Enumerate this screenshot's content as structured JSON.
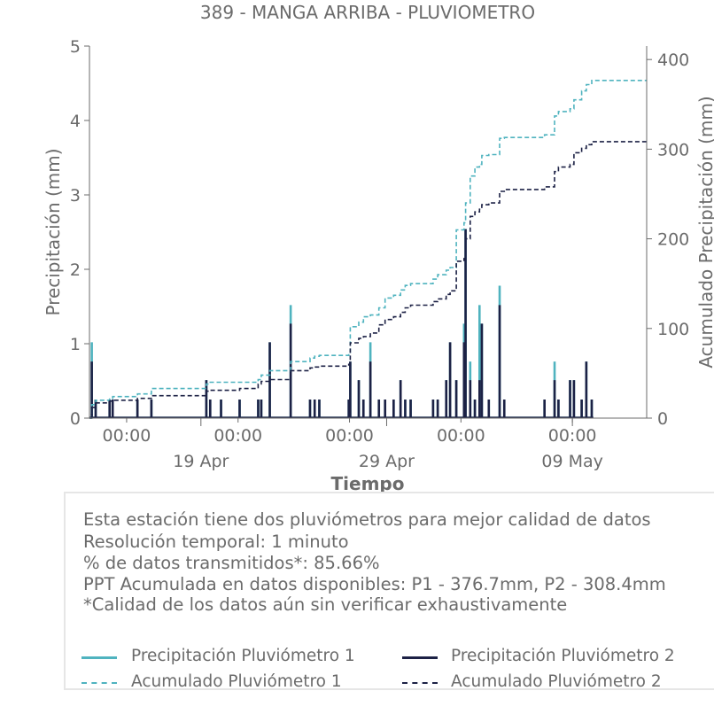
{
  "chart_data": {
    "type": "line",
    "title": "389 - MANGA ARRIBA - PLUVIOMETRO",
    "xlabel": "Tiempo",
    "ylabel": "Precipitación (mm)",
    "ylabel_right": "Acumulado Precipitación (mm)",
    "ylim": [
      0,
      5
    ],
    "ylim_right": [
      0,
      415
    ],
    "yticks": [
      0,
      1,
      2,
      3,
      4,
      5
    ],
    "yticks_right": [
      0,
      100,
      200,
      300,
      400
    ],
    "x_range": [
      "2024-04-13",
      "2024-05-13"
    ],
    "x_major_ticks": [
      {
        "x": "2024-04-19",
        "label": "19 Apr"
      },
      {
        "x": "2024-04-29",
        "label": "29 Apr"
      },
      {
        "x": "2024-05-09",
        "label": "09 May"
      }
    ],
    "x_minor_ticks": [
      {
        "x": "2024-04-15",
        "label": "00:00"
      },
      {
        "x": "2024-04-21",
        "label": "00:00"
      },
      {
        "x": "2024-04-27",
        "label": "00:00"
      },
      {
        "x": "2024-05-03",
        "label": "00:00"
      },
      {
        "x": "2024-05-09",
        "label": "00:00"
      }
    ],
    "grid": false,
    "series": [
      {
        "name": "Precipitación Pluviómetro 1",
        "kind": "spikes",
        "axis": "left",
        "color": "#4fb3bf",
        "points": [
          [
            "2024-04-13 03:00",
            1.02
          ],
          [
            "2024-04-13 08:00",
            0.25
          ],
          [
            "2024-04-14 02:00",
            0.25
          ],
          [
            "2024-04-14 06:00",
            0.25
          ],
          [
            "2024-04-15 14:00",
            0.25
          ],
          [
            "2024-04-16 08:00",
            0.25
          ],
          [
            "2024-04-19 07:00",
            0.51
          ],
          [
            "2024-04-19 12:00",
            0.25
          ],
          [
            "2024-04-20 02:00",
            0.25
          ],
          [
            "2024-04-21 02:00",
            0.25
          ],
          [
            "2024-04-22 02:00",
            0.25
          ],
          [
            "2024-04-22 06:00",
            0.25
          ],
          [
            "2024-04-22 17:00",
            1.02
          ],
          [
            "2024-04-23 20:00",
            1.52
          ],
          [
            "2024-04-24 21:00",
            0.25
          ],
          [
            "2024-04-25 03:00",
            0.25
          ],
          [
            "2024-04-25 09:00",
            0.25
          ],
          [
            "2024-04-26 23:00",
            0.25
          ],
          [
            "2024-04-27 01:00",
            0.76
          ],
          [
            "2024-04-27 12:00",
            0.51
          ],
          [
            "2024-04-27 18:00",
            0.25
          ],
          [
            "2024-04-28 03:00",
            1.02
          ],
          [
            "2024-04-28 14:00",
            0.25
          ],
          [
            "2024-04-28 22:00",
            0.25
          ],
          [
            "2024-04-29 09:00",
            0.25
          ],
          [
            "2024-04-29 18:00",
            0.51
          ],
          [
            "2024-04-30 00:00",
            0.25
          ],
          [
            "2024-04-30 07:00",
            0.25
          ],
          [
            "2024-05-01 12:00",
            0.25
          ],
          [
            "2024-05-01 18:00",
            0.25
          ],
          [
            "2024-05-02 05:00",
            0.51
          ],
          [
            "2024-05-02 10:00",
            1.02
          ],
          [
            "2024-05-02 18:00",
            0.51
          ],
          [
            "2024-05-03 04:00",
            1.27
          ],
          [
            "2024-05-03 06:00",
            2.54
          ],
          [
            "2024-05-03 12:00",
            0.76
          ],
          [
            "2024-05-03 18:00",
            0.25
          ],
          [
            "2024-05-04 00:00",
            1.52
          ],
          [
            "2024-05-04 03:00",
            1.27
          ],
          [
            "2024-05-04 12:00",
            0.25
          ],
          [
            "2024-05-05 02:00",
            1.78
          ],
          [
            "2024-05-05 08:00",
            0.25
          ],
          [
            "2024-05-07 12:00",
            0.25
          ],
          [
            "2024-05-08 01:00",
            0.76
          ],
          [
            "2024-05-08 06:00",
            0.25
          ],
          [
            "2024-05-08 21:00",
            0.51
          ],
          [
            "2024-05-09 02:00",
            0.51
          ],
          [
            "2024-05-09 12:00",
            0.25
          ],
          [
            "2024-05-09 18:00",
            0.76
          ],
          [
            "2024-05-10 01:00",
            0.25
          ]
        ]
      },
      {
        "name": "Precipitación Pluviómetro 2",
        "kind": "spikes",
        "axis": "left",
        "color": "#1c2145",
        "points": [
          [
            "2024-04-13 03:00",
            0.76
          ],
          [
            "2024-04-13 08:00",
            0.25
          ],
          [
            "2024-04-14 02:00",
            0.25
          ],
          [
            "2024-04-14 06:00",
            0.25
          ],
          [
            "2024-04-15 14:00",
            0.25
          ],
          [
            "2024-04-16 08:00",
            0.25
          ],
          [
            "2024-04-19 07:00",
            0.51
          ],
          [
            "2024-04-19 12:00",
            0.25
          ],
          [
            "2024-04-20 02:00",
            0.25
          ],
          [
            "2024-04-21 02:00",
            0.25
          ],
          [
            "2024-04-22 02:00",
            0.25
          ],
          [
            "2024-04-22 06:00",
            0.25
          ],
          [
            "2024-04-22 17:00",
            1.02
          ],
          [
            "2024-04-23 20:00",
            1.27
          ],
          [
            "2024-04-24 21:00",
            0.25
          ],
          [
            "2024-04-25 03:00",
            0.25
          ],
          [
            "2024-04-25 09:00",
            0.25
          ],
          [
            "2024-04-26 23:00",
            0.25
          ],
          [
            "2024-04-27 01:00",
            0.76
          ],
          [
            "2024-04-27 12:00",
            0.51
          ],
          [
            "2024-04-27 18:00",
            0.25
          ],
          [
            "2024-04-28 03:00",
            0.76
          ],
          [
            "2024-04-28 14:00",
            0.25
          ],
          [
            "2024-04-28 22:00",
            0.25
          ],
          [
            "2024-04-29 09:00",
            0.25
          ],
          [
            "2024-04-29 18:00",
            0.51
          ],
          [
            "2024-04-30 00:00",
            0.25
          ],
          [
            "2024-04-30 07:00",
            0.25
          ],
          [
            "2024-05-01 12:00",
            0.25
          ],
          [
            "2024-05-01 18:00",
            0.25
          ],
          [
            "2024-05-02 05:00",
            0.51
          ],
          [
            "2024-05-02 10:00",
            1.02
          ],
          [
            "2024-05-02 18:00",
            0.51
          ],
          [
            "2024-05-03 04:00",
            1.02
          ],
          [
            "2024-05-03 06:00",
            2.54
          ],
          [
            "2024-05-03 12:00",
            0.51
          ],
          [
            "2024-05-03 18:00",
            0.25
          ],
          [
            "2024-05-04 00:00",
            0.51
          ],
          [
            "2024-05-04 03:00",
            1.27
          ],
          [
            "2024-05-04 12:00",
            0.25
          ],
          [
            "2024-05-05 02:00",
            1.52
          ],
          [
            "2024-05-05 08:00",
            0.25
          ],
          [
            "2024-05-07 12:00",
            0.25
          ],
          [
            "2024-05-08 01:00",
            0.51
          ],
          [
            "2024-05-08 06:00",
            0.25
          ],
          [
            "2024-05-08 21:00",
            0.51
          ],
          [
            "2024-05-09 02:00",
            0.51
          ],
          [
            "2024-05-09 12:00",
            0.25
          ],
          [
            "2024-05-09 18:00",
            0.76
          ],
          [
            "2024-05-10 01:00",
            0.25
          ]
        ]
      },
      {
        "name": "Acumulado Pluviómetro 1",
        "kind": "step",
        "axis": "right",
        "color": "#4fb3bf",
        "points": [
          [
            "2024-04-13 00:00",
            0
          ],
          [
            "2024-04-13 03:00",
            15
          ],
          [
            "2024-04-13 08:00",
            20
          ],
          [
            "2024-04-14 02:00",
            22
          ],
          [
            "2024-04-14 06:00",
            24
          ],
          [
            "2024-04-15 14:00",
            27
          ],
          [
            "2024-04-16 08:00",
            33
          ],
          [
            "2024-04-19 07:00",
            38
          ],
          [
            "2024-04-19 12:00",
            40
          ],
          [
            "2024-04-20 02:00",
            40
          ],
          [
            "2024-04-21 02:00",
            40
          ],
          [
            "2024-04-22 02:00",
            43
          ],
          [
            "2024-04-22 06:00",
            48
          ],
          [
            "2024-04-22 17:00",
            53
          ],
          [
            "2024-04-23 20:00",
            63
          ],
          [
            "2024-04-24 21:00",
            67
          ],
          [
            "2024-04-25 03:00",
            69
          ],
          [
            "2024-04-25 09:00",
            70
          ],
          [
            "2024-04-26 23:00",
            72
          ],
          [
            "2024-04-27 01:00",
            102
          ],
          [
            "2024-04-27 12:00",
            107
          ],
          [
            "2024-04-27 18:00",
            113
          ],
          [
            "2024-04-28 03:00",
            115
          ],
          [
            "2024-04-28 14:00",
            123
          ],
          [
            "2024-04-28 22:00",
            134
          ],
          [
            "2024-04-29 09:00",
            137
          ],
          [
            "2024-04-29 18:00",
            143
          ],
          [
            "2024-04-30 00:00",
            148
          ],
          [
            "2024-04-30 07:00",
            150
          ],
          [
            "2024-05-01 12:00",
            155
          ],
          [
            "2024-05-01 18:00",
            160
          ],
          [
            "2024-05-02 05:00",
            165
          ],
          [
            "2024-05-02 10:00",
            168
          ],
          [
            "2024-05-02 18:00",
            210
          ],
          [
            "2024-05-03 04:00",
            218
          ],
          [
            "2024-05-03 06:00",
            240
          ],
          [
            "2024-05-03 12:00",
            270
          ],
          [
            "2024-05-03 18:00",
            280
          ],
          [
            "2024-05-04 00:00",
            283
          ],
          [
            "2024-05-04 03:00",
            293
          ],
          [
            "2024-05-04 12:00",
            294
          ],
          [
            "2024-05-05 02:00",
            312
          ],
          [
            "2024-05-05 08:00",
            313
          ],
          [
            "2024-05-07 12:00",
            316
          ],
          [
            "2024-05-08 01:00",
            337
          ],
          [
            "2024-05-08 06:00",
            342
          ],
          [
            "2024-05-08 21:00",
            345
          ],
          [
            "2024-05-09 02:00",
            355
          ],
          [
            "2024-05-09 12:00",
            365
          ],
          [
            "2024-05-09 18:00",
            372
          ],
          [
            "2024-05-10 01:00",
            376.7
          ],
          [
            "2024-05-13 00:00",
            376.7
          ]
        ]
      },
      {
        "name": "Acumulado Pluviómetro 2",
        "kind": "step",
        "axis": "right",
        "color": "#1c2145",
        "points": [
          [
            "2024-04-13 00:00",
            0
          ],
          [
            "2024-04-13 03:00",
            12
          ],
          [
            "2024-04-13 08:00",
            17
          ],
          [
            "2024-04-14 02:00",
            19
          ],
          [
            "2024-04-14 06:00",
            20
          ],
          [
            "2024-04-15 14:00",
            22
          ],
          [
            "2024-04-16 08:00",
            25
          ],
          [
            "2024-04-19 07:00",
            30
          ],
          [
            "2024-04-19 12:00",
            31
          ],
          [
            "2024-04-20 02:00",
            31
          ],
          [
            "2024-04-21 02:00",
            33
          ],
          [
            "2024-04-22 02:00",
            38
          ],
          [
            "2024-04-22 06:00",
            41
          ],
          [
            "2024-04-22 17:00",
            43
          ],
          [
            "2024-04-23 20:00",
            53
          ],
          [
            "2024-04-24 21:00",
            56
          ],
          [
            "2024-04-25 03:00",
            57
          ],
          [
            "2024-04-25 09:00",
            58
          ],
          [
            "2024-04-26 23:00",
            60
          ],
          [
            "2024-04-27 01:00",
            84
          ],
          [
            "2024-04-27 12:00",
            89
          ],
          [
            "2024-04-27 18:00",
            91
          ],
          [
            "2024-04-28 03:00",
            95
          ],
          [
            "2024-04-28 14:00",
            104
          ],
          [
            "2024-04-28 22:00",
            110
          ],
          [
            "2024-04-29 09:00",
            113
          ],
          [
            "2024-04-29 18:00",
            118
          ],
          [
            "2024-04-30 00:00",
            123
          ],
          [
            "2024-04-30 07:00",
            126
          ],
          [
            "2024-05-01 12:00",
            130
          ],
          [
            "2024-05-01 18:00",
            133
          ],
          [
            "2024-05-02 05:00",
            138
          ],
          [
            "2024-05-02 10:00",
            142
          ],
          [
            "2024-05-02 18:00",
            175
          ],
          [
            "2024-05-03 04:00",
            178
          ],
          [
            "2024-05-03 06:00",
            200
          ],
          [
            "2024-05-03 12:00",
            225
          ],
          [
            "2024-05-03 18:00",
            230
          ],
          [
            "2024-05-04 00:00",
            233
          ],
          [
            "2024-05-04 03:00",
            238
          ],
          [
            "2024-05-04 12:00",
            240
          ],
          [
            "2024-05-05 02:00",
            253
          ],
          [
            "2024-05-05 08:00",
            255
          ],
          [
            "2024-05-07 12:00",
            258
          ],
          [
            "2024-05-08 01:00",
            275
          ],
          [
            "2024-05-08 06:00",
            280
          ],
          [
            "2024-05-08 21:00",
            283
          ],
          [
            "2024-05-09 02:00",
            296
          ],
          [
            "2024-05-09 12:00",
            301
          ],
          [
            "2024-05-09 18:00",
            305
          ],
          [
            "2024-05-10 01:00",
            308.4
          ],
          [
            "2024-05-13 00:00",
            308.4
          ]
        ]
      }
    ]
  },
  "info": {
    "line1": "Esta estación tiene dos pluviómetros para mejor calidad de datos",
    "line2": "Resolución temporal: 1 minuto",
    "line3": "% de datos transmitidos*: 85.66%",
    "line4": "PPT Acumulada en datos disponibles: P1 - 376.7mm, P2 - 308.4mm",
    "line5": "*Calidad de los datos aún sin verificar exhaustivamente"
  },
  "legend": {
    "p1": "Precipitación Pluviómetro 1",
    "p2": "Precipitación Pluviómetro 2",
    "a1": "Acumulado Pluviómetro 1",
    "a2": "Acumulado Pluviómetro 2"
  }
}
